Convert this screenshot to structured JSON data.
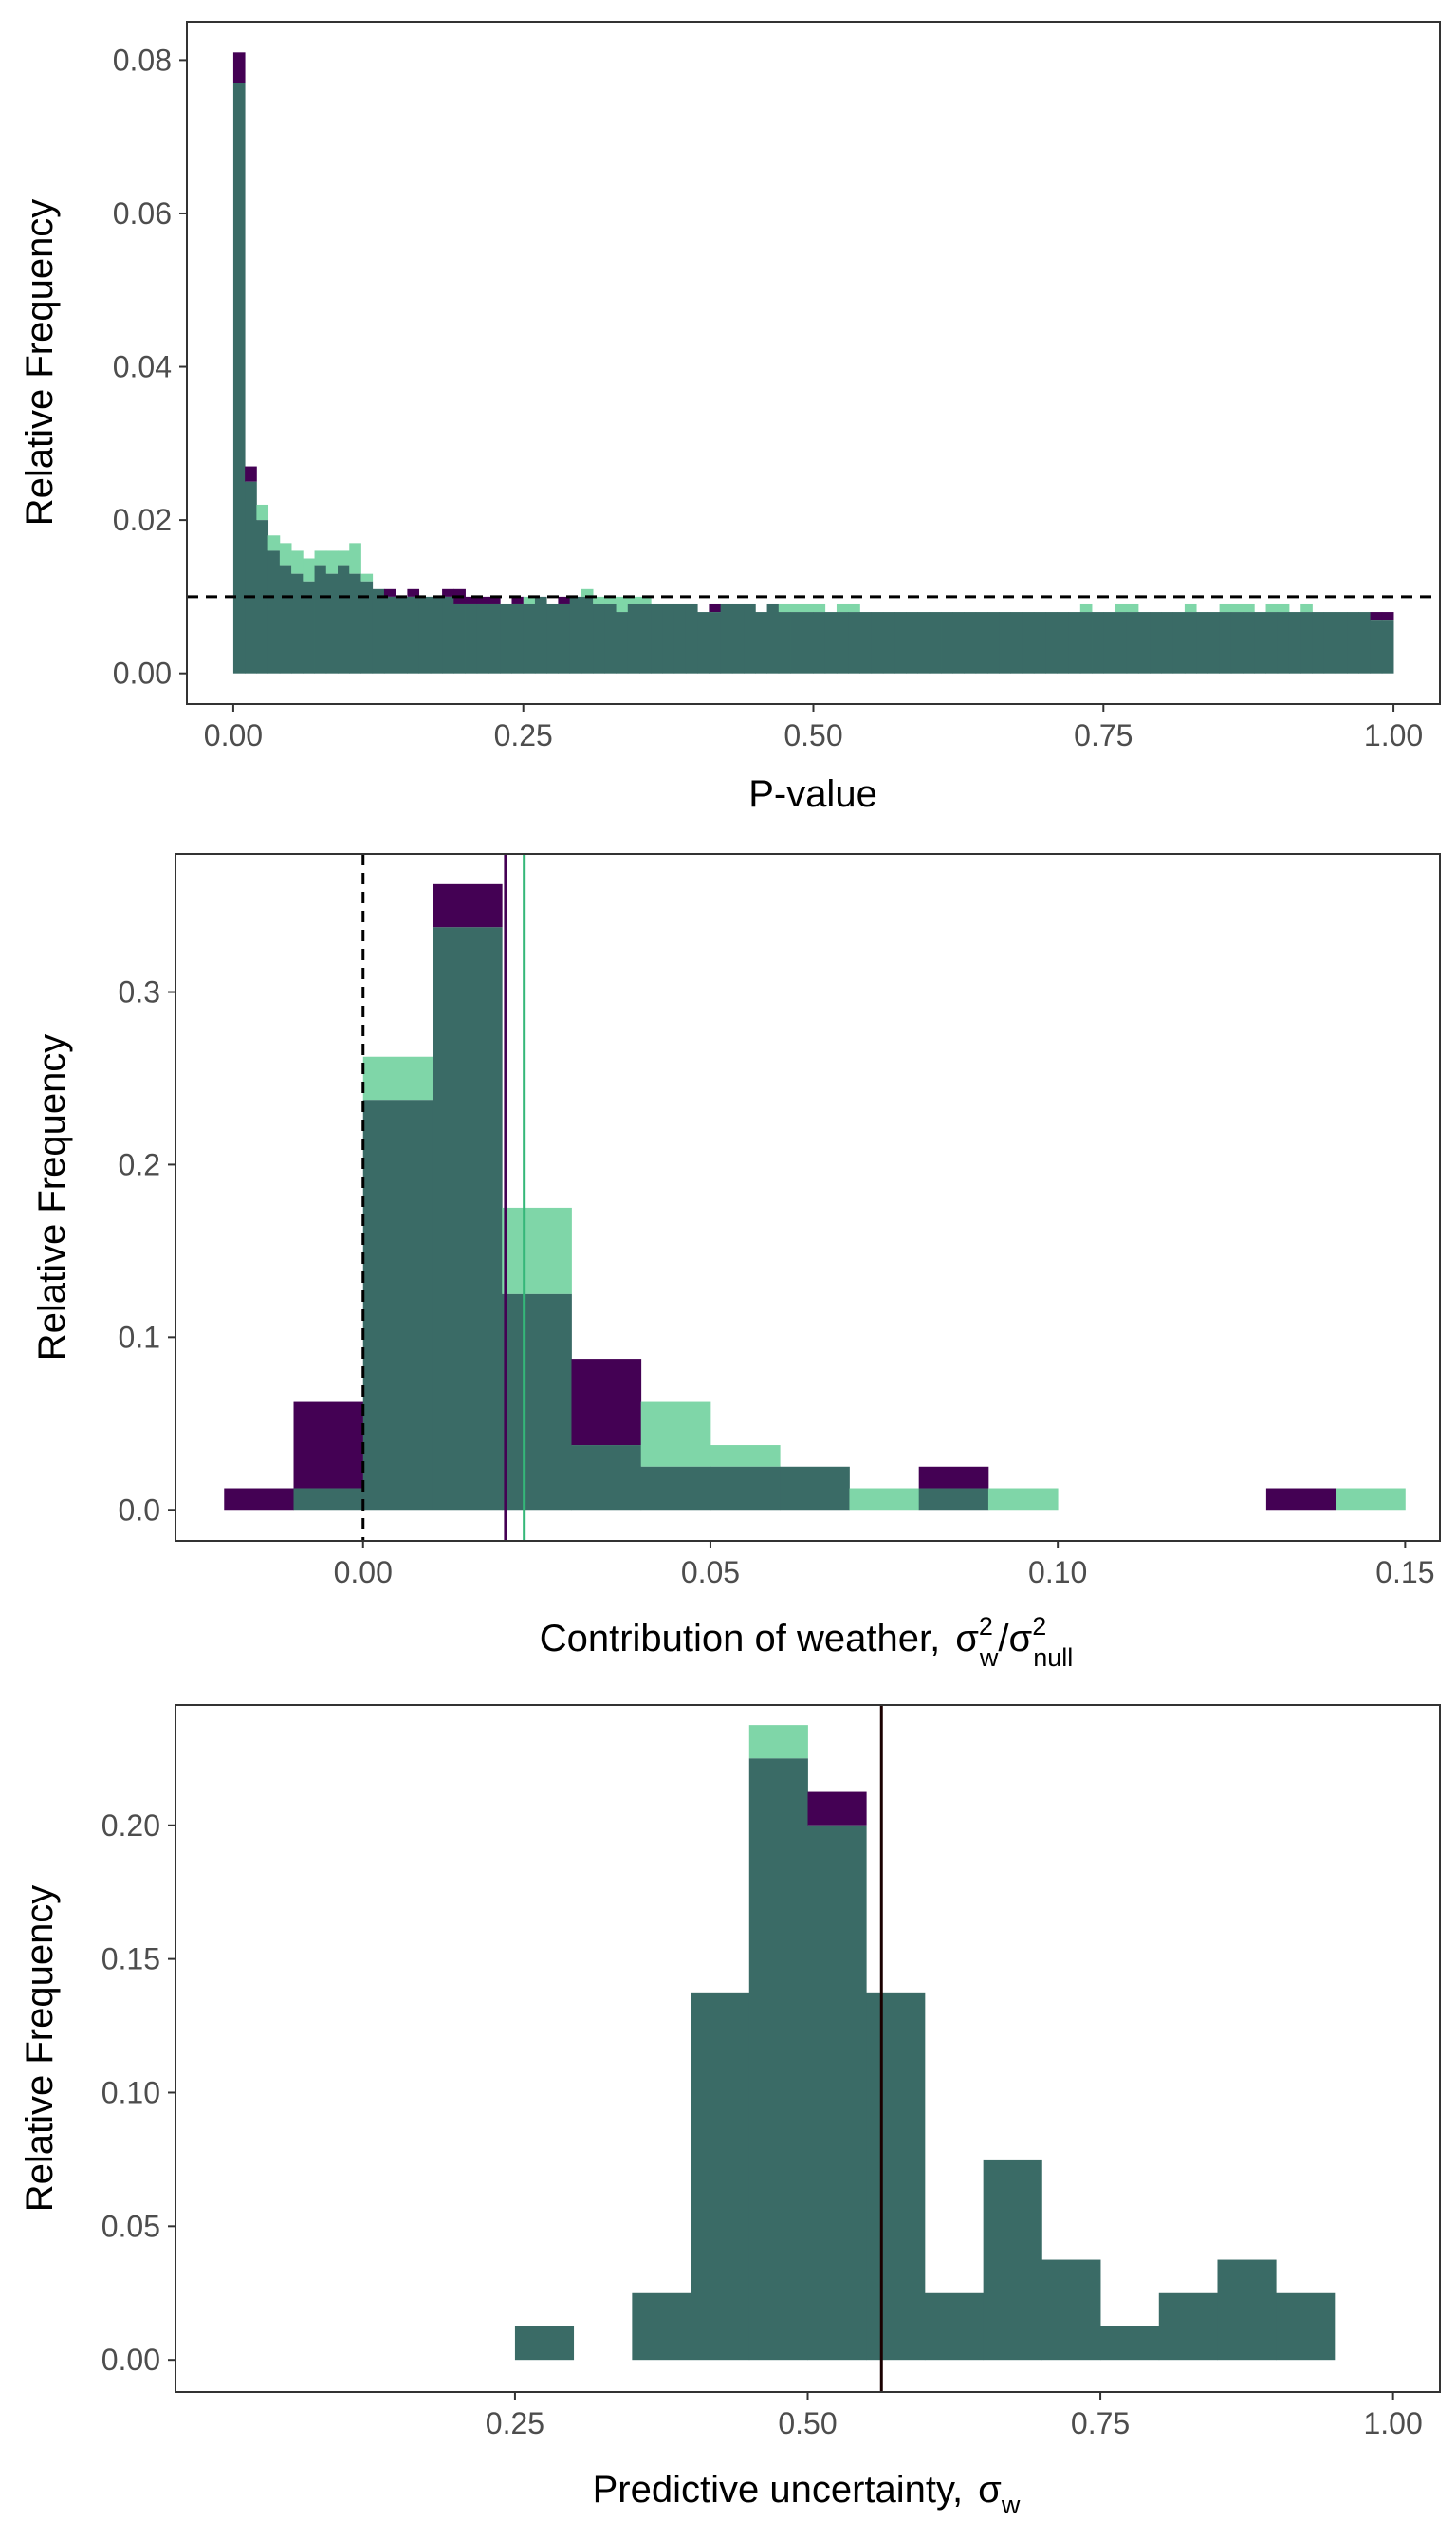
{
  "colors": {
    "group_a": "#440154",
    "group_b": "#7fd6a8",
    "overlap": "#3a6b66",
    "reference_line": "#000000",
    "mean_a": "#440154",
    "mean_b": "#35b779",
    "mean_c": "#1a0000"
  },
  "chart_data": [
    {
      "type": "histogram",
      "xlabel": "P-value",
      "ylabel": "Relative Frequency",
      "xlim": [
        -0.04,
        1.04
      ],
      "ylim": [
        -0.004,
        0.085
      ],
      "x_ticks": [
        0.0,
        0.25,
        0.5,
        0.75,
        1.0
      ],
      "x_tick_labels": [
        "0.00",
        "0.25",
        "0.50",
        "0.75",
        "1.00"
      ],
      "y_ticks": [
        0.0,
        0.02,
        0.04,
        0.06,
        0.08
      ],
      "y_tick_labels": [
        "0.00",
        "0.02",
        "0.04",
        "0.06",
        "0.08"
      ],
      "bin_width": 0.01,
      "bin_start": 0.0,
      "reference_hline": 0.01,
      "series": [
        {
          "values": [
            0.081,
            0.027,
            0.02,
            0.016,
            0.014,
            0.013,
            0.012,
            0.014,
            0.013,
            0.014,
            0.013,
            0.012,
            0.011,
            0.011,
            0.01,
            0.011,
            0.01,
            0.01,
            0.011,
            0.011,
            0.01,
            0.01,
            0.01,
            0.009,
            0.01,
            0.009,
            0.01,
            0.009,
            0.01,
            0.01,
            0.01,
            0.009,
            0.009,
            0.008,
            0.009,
            0.009,
            0.009,
            0.009,
            0.009,
            0.009,
            0.008,
            0.009,
            0.009,
            0.009,
            0.009,
            0.008,
            0.009,
            0.008,
            0.008,
            0.008,
            0.008,
            0.008,
            0.008,
            0.008,
            0.008,
            0.008,
            0.008,
            0.008,
            0.008,
            0.008,
            0.008,
            0.008,
            0.008,
            0.008,
            0.008,
            0.008,
            0.008,
            0.008,
            0.008,
            0.008,
            0.008,
            0.008,
            0.008,
            0.008,
            0.008,
            0.008,
            0.008,
            0.008,
            0.008,
            0.008,
            0.008,
            0.008,
            0.008,
            0.008,
            0.008,
            0.008,
            0.008,
            0.008,
            0.008,
            0.008,
            0.008,
            0.008,
            0.008,
            0.008,
            0.008,
            0.008,
            0.008,
            0.008,
            0.008,
            0.008
          ]
        },
        {
          "values": [
            0.077,
            0.025,
            0.022,
            0.018,
            0.017,
            0.016,
            0.015,
            0.016,
            0.016,
            0.016,
            0.017,
            0.013,
            0.011,
            0.01,
            0.01,
            0.01,
            0.01,
            0.01,
            0.01,
            0.009,
            0.009,
            0.009,
            0.009,
            0.009,
            0.009,
            0.01,
            0.01,
            0.009,
            0.009,
            0.01,
            0.011,
            0.01,
            0.01,
            0.01,
            0.01,
            0.01,
            0.009,
            0.009,
            0.009,
            0.009,
            0.008,
            0.008,
            0.009,
            0.009,
            0.009,
            0.008,
            0.009,
            0.009,
            0.009,
            0.009,
            0.009,
            0.008,
            0.009,
            0.009,
            0.008,
            0.008,
            0.008,
            0.008,
            0.008,
            0.008,
            0.008,
            0.008,
            0.008,
            0.008,
            0.008,
            0.008,
            0.008,
            0.008,
            0.008,
            0.008,
            0.008,
            0.008,
            0.008,
            0.009,
            0.008,
            0.008,
            0.009,
            0.009,
            0.008,
            0.008,
            0.008,
            0.008,
            0.009,
            0.008,
            0.008,
            0.009,
            0.009,
            0.009,
            0.008,
            0.009,
            0.009,
            0.008,
            0.009,
            0.008,
            0.008,
            0.008,
            0.008,
            0.008,
            0.007,
            0.007
          ]
        }
      ],
      "vlines": []
    },
    {
      "type": "histogram",
      "xlabel": "Contribution of weather,",
      "xlabel_math": {
        "numerator": "σ",
        "numerator_sup": "2",
        "numerator_sub": "w",
        "slash": "/",
        "denominator": "σ",
        "denominator_sup": "2",
        "denominator_sub": "null"
      },
      "ylabel": "Relative Frequency",
      "xlim": [
        -0.027,
        0.155
      ],
      "ylim": [
        -0.018,
        0.38
      ],
      "x_ticks": [
        0.0,
        0.05,
        0.1,
        0.15
      ],
      "x_tick_labels": [
        "0.00",
        "0.05",
        "0.10",
        "0.15"
      ],
      "y_ticks": [
        0.0,
        0.1,
        0.2,
        0.3
      ],
      "y_tick_labels": [
        "0.0",
        "0.1",
        "0.2",
        "0.3"
      ],
      "bin_width": 0.01,
      "bin_start": -0.02,
      "reference_vline": 0.0,
      "series": [
        {
          "values": [
            0.0125,
            0.0625,
            0.2375,
            0.3625,
            0.125,
            0.0875,
            0.025,
            0.025,
            0.025,
            0.0,
            0.025,
            0.0,
            0.0,
            0.0,
            0.0,
            0.0125,
            0.0
          ]
        },
        {
          "values": [
            0.0,
            0.0125,
            0.2625,
            0.3375,
            0.175,
            0.0375,
            0.0625,
            0.0375,
            0.025,
            0.0125,
            0.0125,
            0.0125,
            0.0,
            0.0,
            0.0,
            0.0,
            0.0125
          ]
        }
      ],
      "vlines": [
        {
          "x": 0.0205,
          "color_key": "mean_a"
        },
        {
          "x": 0.0232,
          "color_key": "mean_b"
        }
      ]
    },
    {
      "type": "histogram",
      "xlabel": "Predictive uncertainty,",
      "xlabel_math": {
        "symbol": "σ",
        "sub": "w"
      },
      "ylabel": "Relative Frequency",
      "xlim": [
        -0.04,
        1.04
      ],
      "ylim": [
        -0.012,
        0.245
      ],
      "x_ticks": [
        0.25,
        0.5,
        0.75,
        1.0
      ],
      "x_tick_labels": [
        "0.25",
        "0.50",
        "0.75",
        "1.00"
      ],
      "y_ticks": [
        0.0,
        0.05,
        0.1,
        0.15,
        0.2
      ],
      "y_tick_labels": [
        "0.00",
        "0.05",
        "0.10",
        "0.15",
        "0.20"
      ],
      "bin_width": 0.05,
      "bin_start": 0.25,
      "series": [
        {
          "values": [
            0.0125,
            0.0,
            0.025,
            0.1375,
            0.225,
            0.2125,
            0.1375,
            0.025,
            0.075,
            0.0375,
            0.0125,
            0.025,
            0.0375,
            0.025,
            0.0,
            0.0,
            0.0,
            0.0125
          ]
        },
        {
          "values": [
            0.0125,
            0.0,
            0.025,
            0.1375,
            0.2375,
            0.2,
            0.1375,
            0.025,
            0.075,
            0.0375,
            0.0125,
            0.025,
            0.0375,
            0.025,
            0.0,
            0.0,
            0.0,
            0.0125
          ]
        }
      ],
      "vlines": [
        {
          "x": 0.563,
          "color_key": "mean_c"
        }
      ]
    }
  ]
}
